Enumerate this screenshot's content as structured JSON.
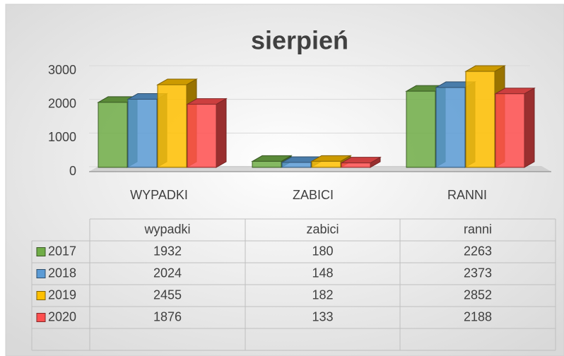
{
  "chart_data": {
    "type": "bar",
    "title": "sierpień",
    "categories": [
      "WYPADKI",
      "ZABICI",
      "RANNI"
    ],
    "table_columns": [
      "wypadki",
      "zabici",
      "ranni"
    ],
    "series": [
      {
        "name": "2017",
        "color": "#70ad47",
        "values": [
          1932,
          180,
          2263
        ]
      },
      {
        "name": "2018",
        "color": "#5b9bd5",
        "values": [
          2024,
          148,
          2373
        ]
      },
      {
        "name": "2019",
        "color": "#ffc000",
        "values": [
          2455,
          182,
          2852
        ]
      },
      {
        "name": "2020",
        "color": "#ff4f4f",
        "values": [
          1876,
          133,
          2188
        ]
      }
    ],
    "ylim": [
      0,
      3000
    ],
    "yticks": [
      0,
      1000,
      2000,
      3000
    ],
    "grid": true
  }
}
